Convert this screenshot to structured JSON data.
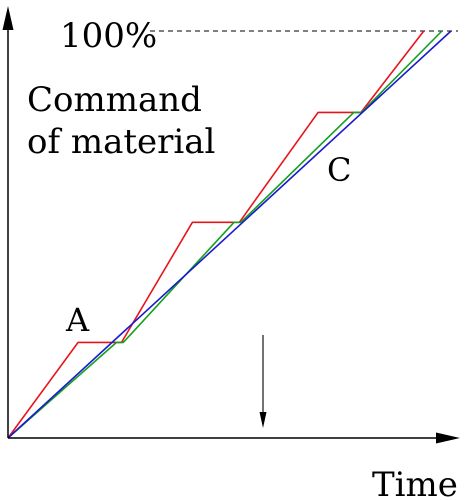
{
  "diagram": {
    "y_axis_label_line1": "Command",
    "y_axis_label_line2": "of material",
    "x_axis_label": "Time",
    "max_label": "100%",
    "point_a_label": "A",
    "point_c_label": "C"
  },
  "colors": {
    "red": "#e8141c",
    "green": "#14a01c",
    "blue": "#1a1ad0",
    "axis": "#000000"
  },
  "chart_data": {
    "type": "line",
    "title": "",
    "xlabel": "Time",
    "ylabel": "Command of material",
    "xlim": [
      0,
      1
    ],
    "ylim": [
      0,
      1
    ],
    "series": [
      {
        "x": [
          0,
          0.155,
          0.251,
          0.408,
          0.512,
          0.686,
          0.781,
          0.92
        ],
        "y": [
          0,
          0.235,
          0.235,
          0.53,
          0.53,
          0.8,
          0.8,
          1.0
        ]
      },
      {
        "x": [
          0,
          0.24,
          0.255,
          0.5,
          0.515,
          0.765,
          0.782,
          0.96
        ],
        "y": [
          0,
          0.235,
          0.235,
          0.53,
          0.53,
          0.8,
          0.8,
          1.0
        ]
      },
      {
        "x": [
          0,
          0.98
        ],
        "y": [
          0,
          1.0
        ]
      }
    ]
  }
}
